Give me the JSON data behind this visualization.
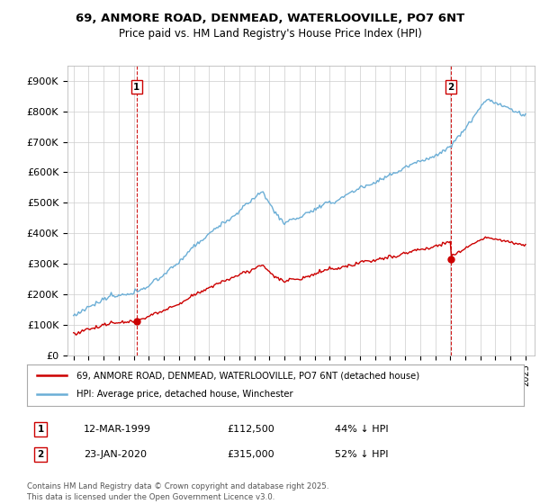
{
  "title1": "69, ANMORE ROAD, DENMEAD, WATERLOOVILLE, PO7 6NT",
  "title2": "Price paid vs. HM Land Registry's House Price Index (HPI)",
  "ylim": [
    0,
    950000
  ],
  "yticks": [
    0,
    100000,
    200000,
    300000,
    400000,
    500000,
    600000,
    700000,
    800000,
    900000
  ],
  "ytick_labels": [
    "£0",
    "£100K",
    "£200K",
    "£300K",
    "£400K",
    "£500K",
    "£600K",
    "£700K",
    "£800K",
    "£900K"
  ],
  "hpi_color": "#6baed6",
  "price_color": "#cc0000",
  "vline_color": "#cc0000",
  "sale1_year": 1999.19,
  "sale1_price": 112500,
  "sale1_pct": "44% ↓ HPI",
  "sale1_date": "12-MAR-1999",
  "sale2_year": 2020.06,
  "sale2_price": 315000,
  "sale2_pct": "52% ↓ HPI",
  "sale2_date": "23-JAN-2020",
  "legend_label1": "69, ANMORE ROAD, DENMEAD, WATERLOOVILLE, PO7 6NT (detached house)",
  "legend_label2": "HPI: Average price, detached house, Winchester",
  "footnote": "Contains HM Land Registry data © Crown copyright and database right 2025.\nThis data is licensed under the Open Government Licence v3.0.",
  "background_color": "#ffffff",
  "grid_color": "#cccccc"
}
